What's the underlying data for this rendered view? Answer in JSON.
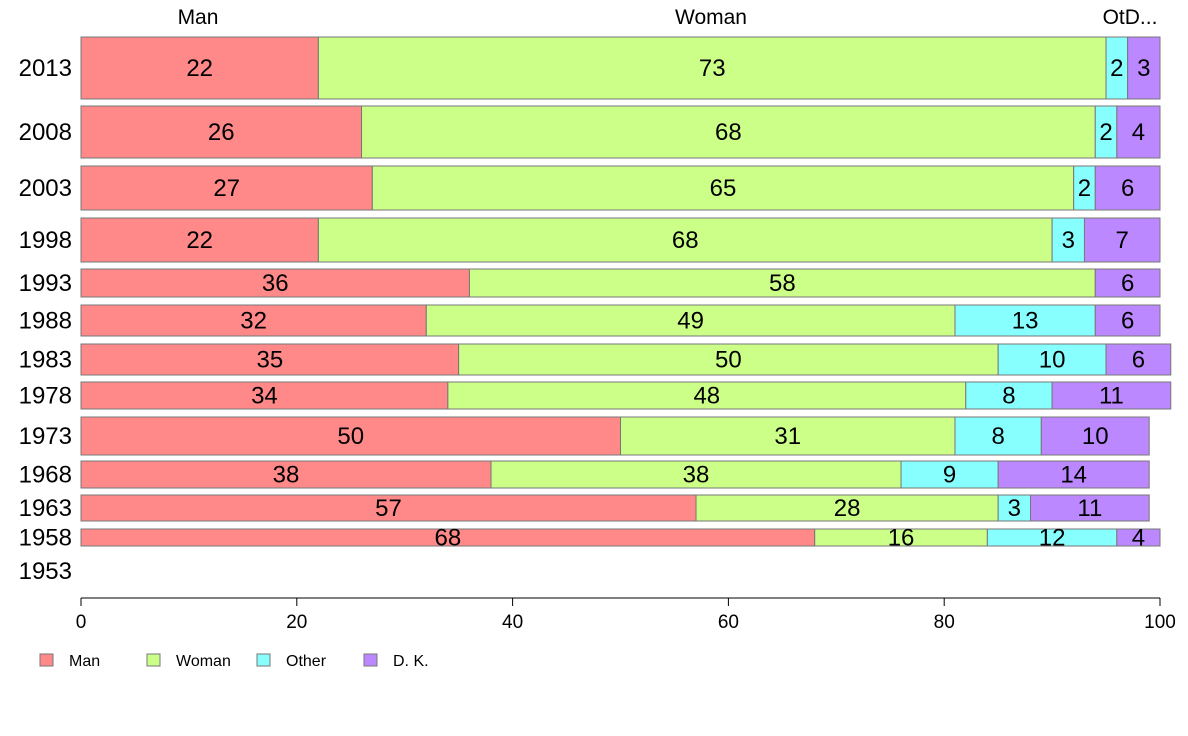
{
  "chart_data": {
    "type": "bar",
    "orientation": "horizontal",
    "stacked": true,
    "categories": [
      "2013",
      "2008",
      "2003",
      "1998",
      "1993",
      "1988",
      "1983",
      "1978",
      "1973",
      "1968",
      "1963",
      "1958",
      "1953"
    ],
    "series": [
      {
        "name": "Man",
        "color": "#ff8888",
        "values": [
          22,
          26,
          27,
          22,
          36,
          32,
          35,
          34,
          50,
          38,
          57,
          68,
          null
        ]
      },
      {
        "name": "Woman",
        "color": "#ccff88",
        "values": [
          73,
          68,
          65,
          68,
          58,
          49,
          50,
          48,
          31,
          38,
          28,
          16,
          null
        ]
      },
      {
        "name": "Other",
        "color": "#88ffff",
        "values": [
          2,
          2,
          2,
          3,
          0,
          13,
          10,
          8,
          8,
          9,
          3,
          12,
          null
        ]
      },
      {
        "name": "D. K.",
        "color": "#bb88ff",
        "values": [
          3,
          4,
          6,
          7,
          6,
          6,
          6,
          11,
          10,
          14,
          11,
          4,
          null
        ]
      }
    ],
    "column_labels": [
      "Man",
      "Woman",
      "OtD..."
    ],
    "xlim": [
      0,
      100
    ],
    "xticks": [
      "0",
      "20",
      "40",
      "60",
      "80",
      "100"
    ],
    "grid": false,
    "legend_position": "bottom-left"
  }
}
